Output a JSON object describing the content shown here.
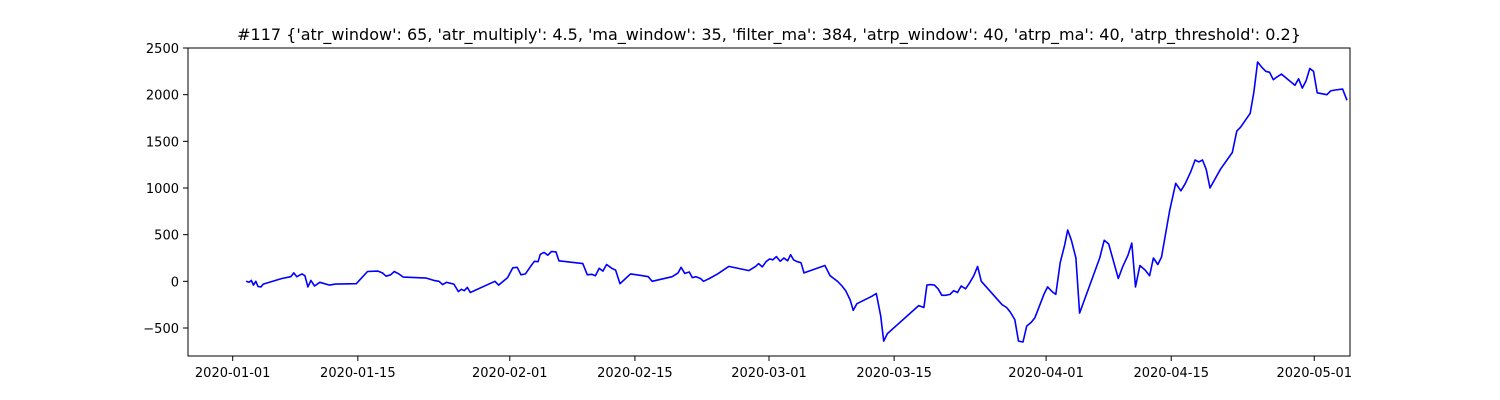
{
  "chart_data": {
    "type": "line",
    "title": "#117 {'atr_window': 65, 'atr_multiply': 4.5, 'ma_window': 35, 'filter_ma': 384, 'atrp_window': 40, 'atrp_ma': 40, 'atrp_threshold': 0.2}",
    "xlabel": "",
    "ylabel": "",
    "x_axis_kind": "date",
    "xlim": [
      "2019-12-27",
      "2020-05-05"
    ],
    "ylim": [
      -800,
      2500
    ],
    "grid": false,
    "legend": "none",
    "x_ticks": [
      {
        "date": "2020-01-01",
        "label": "2020-01-01"
      },
      {
        "date": "2020-01-15",
        "label": "2020-01-15"
      },
      {
        "date": "2020-02-01",
        "label": "2020-02-01"
      },
      {
        "date": "2020-02-15",
        "label": "2020-02-15"
      },
      {
        "date": "2020-03-01",
        "label": "2020-03-01"
      },
      {
        "date": "2020-03-15",
        "label": "2020-03-15"
      },
      {
        "date": "2020-04-01",
        "label": "2020-04-01"
      },
      {
        "date": "2020-04-15",
        "label": "2020-04-15"
      },
      {
        "date": "2020-05-01",
        "label": "2020-05-01"
      }
    ],
    "y_ticks": [
      {
        "value": -500,
        "label": "−500"
      },
      {
        "value": 0,
        "label": "0"
      },
      {
        "value": 500,
        "label": "500"
      },
      {
        "value": 1000,
        "label": "1000"
      },
      {
        "value": 1500,
        "label": "1500"
      },
      {
        "value": 2000,
        "label": "2000"
      },
      {
        "value": 2500,
        "label": "2500"
      }
    ],
    "series": [
      {
        "color": "#0000ff",
        "points": [
          [
            "2020-01-02 12:00",
            0
          ],
          [
            "2020-01-02 20:00",
            -10
          ],
          [
            "2020-01-03 02:00",
            10
          ],
          [
            "2020-01-03 08:00",
            -40
          ],
          [
            "2020-01-03 14:00",
            0
          ],
          [
            "2020-01-03 20:00",
            -55
          ],
          [
            "2020-01-04 04:00",
            -60
          ],
          [
            "2020-01-04 10:00",
            -30
          ],
          [
            "2020-01-06 12:00",
            30
          ],
          [
            "2020-01-07 12:00",
            50
          ],
          [
            "2020-01-07 20:00",
            90
          ],
          [
            "2020-01-08 04:00",
            50
          ],
          [
            "2020-01-08 18:00",
            80
          ],
          [
            "2020-01-09 02:00",
            60
          ],
          [
            "2020-01-09 10:00",
            -60
          ],
          [
            "2020-01-09 18:00",
            10
          ],
          [
            "2020-01-10 04:00",
            -50
          ],
          [
            "2020-01-10 18:00",
            -10
          ],
          [
            "2020-01-11 20:00",
            -40
          ],
          [
            "2020-01-12 12:00",
            -30
          ],
          [
            "2020-01-14 20:00",
            -25
          ],
          [
            "2020-01-16 02:00",
            105
          ],
          [
            "2020-01-17 06:00",
            110
          ],
          [
            "2020-01-17 18:00",
            90
          ],
          [
            "2020-01-18 04:00",
            55
          ],
          [
            "2020-01-18 16:00",
            70
          ],
          [
            "2020-01-19 02:00",
            105
          ],
          [
            "2020-01-19 14:00",
            80
          ],
          [
            "2020-01-20 02:00",
            45
          ],
          [
            "2020-01-22 16:00",
            35
          ],
          [
            "2020-01-23 12:00",
            10
          ],
          [
            "2020-01-24 02:00",
            0
          ],
          [
            "2020-01-24 12:00",
            -35
          ],
          [
            "2020-01-24 22:00",
            -10
          ],
          [
            "2020-01-25 18:00",
            -30
          ],
          [
            "2020-01-26 06:00",
            -110
          ],
          [
            "2020-01-26 14:00",
            -85
          ],
          [
            "2020-01-26 22:00",
            -100
          ],
          [
            "2020-01-27 06:00",
            -65
          ],
          [
            "2020-01-27 14:00",
            -120
          ],
          [
            "2020-01-30 08:00",
            0
          ],
          [
            "2020-01-30 18:00",
            -40
          ],
          [
            "2020-01-31 18:00",
            40
          ],
          [
            "2020-02-01 08:00",
            145
          ],
          [
            "2020-02-01 20:00",
            150
          ],
          [
            "2020-02-02 06:00",
            70
          ],
          [
            "2020-02-02 18:00",
            80
          ],
          [
            "2020-02-03 08:00",
            160
          ],
          [
            "2020-02-03 18:00",
            215
          ],
          [
            "2020-02-04 04:00",
            210
          ],
          [
            "2020-02-04 10:00",
            290
          ],
          [
            "2020-02-04 20:00",
            310
          ],
          [
            "2020-02-05 06:00",
            280
          ],
          [
            "2020-02-05 16:00",
            320
          ],
          [
            "2020-02-06 04:00",
            315
          ],
          [
            "2020-02-06 12:00",
            220
          ],
          [
            "2020-02-09 04:00",
            190
          ],
          [
            "2020-02-09 16:00",
            70
          ],
          [
            "2020-02-10 04:00",
            75
          ],
          [
            "2020-02-10 14:00",
            60
          ],
          [
            "2020-02-11 00:00",
            140
          ],
          [
            "2020-02-11 10:00",
            110
          ],
          [
            "2020-02-11 20:00",
            180
          ],
          [
            "2020-02-12 10:00",
            140
          ],
          [
            "2020-02-12 20:00",
            120
          ],
          [
            "2020-02-13 08:00",
            -25
          ],
          [
            "2020-02-13 20:00",
            20
          ],
          [
            "2020-02-14 12:00",
            80
          ],
          [
            "2020-02-15 20:00",
            60
          ],
          [
            "2020-02-16 12:00",
            50
          ],
          [
            "2020-02-16 22:00",
            0
          ],
          [
            "2020-02-19 04:00",
            50
          ],
          [
            "2020-02-19 20:00",
            90
          ],
          [
            "2020-02-20 04:00",
            150
          ],
          [
            "2020-02-20 14:00",
            85
          ],
          [
            "2020-02-21 02:00",
            100
          ],
          [
            "2020-02-21 10:00",
            40
          ],
          [
            "2020-02-21 20:00",
            50
          ],
          [
            "2020-02-22 08:00",
            30
          ],
          [
            "2020-02-22 16:00",
            0
          ],
          [
            "2020-02-23 08:00",
            30
          ],
          [
            "2020-02-24 06:00",
            80
          ],
          [
            "2020-02-25 12:00",
            160
          ],
          [
            "2020-02-27 18:00",
            115
          ],
          [
            "2020-02-28 12:00",
            160
          ],
          [
            "2020-02-28 20:00",
            190
          ],
          [
            "2020-02-29 06:00",
            155
          ],
          [
            "2020-02-29 16:00",
            210
          ],
          [
            "2020-03-01 02:00",
            240
          ],
          [
            "2020-03-01 10:00",
            230
          ],
          [
            "2020-03-01 20:00",
            265
          ],
          [
            "2020-03-02 06:00",
            215
          ],
          [
            "2020-03-02 16:00",
            250
          ],
          [
            "2020-03-03 02:00",
            220
          ],
          [
            "2020-03-03 10:00",
            285
          ],
          [
            "2020-03-03 18:00",
            230
          ],
          [
            "2020-03-04 04:00",
            210
          ],
          [
            "2020-03-04 14:00",
            200
          ],
          [
            "2020-03-04 22:00",
            90
          ],
          [
            "2020-03-07 06:00",
            170
          ],
          [
            "2020-03-07 20:00",
            60
          ],
          [
            "2020-03-08 06:00",
            30
          ],
          [
            "2020-03-08 16:00",
            0
          ],
          [
            "2020-03-09 04:00",
            -50
          ],
          [
            "2020-03-09 14:00",
            -100
          ],
          [
            "2020-03-10 02:00",
            -200
          ],
          [
            "2020-03-10 10:00",
            -310
          ],
          [
            "2020-03-10 20:00",
            -240
          ],
          [
            "2020-03-12 12:00",
            -160
          ],
          [
            "2020-03-13 00:00",
            -130
          ],
          [
            "2020-03-13 12:00",
            -370
          ],
          [
            "2020-03-13 20:00",
            -640
          ],
          [
            "2020-03-14 06:00",
            -560
          ],
          [
            "2020-03-17 18:00",
            -260
          ],
          [
            "2020-03-18 08:00",
            -280
          ],
          [
            "2020-03-18 16:00",
            -40
          ],
          [
            "2020-03-19 02:00",
            -35
          ],
          [
            "2020-03-19 12:00",
            -40
          ],
          [
            "2020-03-19 22:00",
            -80
          ],
          [
            "2020-03-20 08:00",
            -150
          ],
          [
            "2020-03-20 18:00",
            -150
          ],
          [
            "2020-03-21 06:00",
            -140
          ],
          [
            "2020-03-21 16:00",
            -100
          ],
          [
            "2020-03-22 02:00",
            -120
          ],
          [
            "2020-03-22 12:00",
            -50
          ],
          [
            "2020-03-23 00:00",
            -80
          ],
          [
            "2020-03-23 10:00",
            -20
          ],
          [
            "2020-03-23 22:00",
            60
          ],
          [
            "2020-03-24 08:00",
            160
          ],
          [
            "2020-03-24 18:00",
            0
          ],
          [
            "2020-03-27 02:00",
            -250
          ],
          [
            "2020-03-27 14:00",
            -280
          ],
          [
            "2020-03-28 00:00",
            -330
          ],
          [
            "2020-03-28 12:00",
            -410
          ],
          [
            "2020-03-28 22:00",
            -640
          ],
          [
            "2020-03-29 10:00",
            -650
          ],
          [
            "2020-03-29 20:00",
            -480
          ],
          [
            "2020-03-30 08:00",
            -440
          ],
          [
            "2020-03-30 18:00",
            -390
          ],
          [
            "2020-03-31 18:00",
            -140
          ],
          [
            "2020-04-01 04:00",
            -60
          ],
          [
            "2020-04-01 16:00",
            -110
          ],
          [
            "2020-04-02 02:00",
            -140
          ],
          [
            "2020-04-02 14:00",
            200
          ],
          [
            "2020-04-03 02:00",
            390
          ],
          [
            "2020-04-03 10:00",
            550
          ],
          [
            "2020-04-03 20:00",
            440
          ],
          [
            "2020-04-04 08:00",
            250
          ],
          [
            "2020-04-04 18:00",
            -340
          ],
          [
            "2020-04-07 00:00",
            250
          ],
          [
            "2020-04-07 12:00",
            440
          ],
          [
            "2020-04-08 00:00",
            400
          ],
          [
            "2020-04-08 14:00",
            200
          ],
          [
            "2020-04-09 02:00",
            30
          ],
          [
            "2020-04-09 14:00",
            160
          ],
          [
            "2020-04-10 04:00",
            280
          ],
          [
            "2020-04-10 14:00",
            410
          ],
          [
            "2020-04-11 00:00",
            -60
          ],
          [
            "2020-04-11 12:00",
            170
          ],
          [
            "2020-04-12 02:00",
            120
          ],
          [
            "2020-04-12 14:00",
            60
          ],
          [
            "2020-04-13 00:00",
            250
          ],
          [
            "2020-04-13 12:00",
            180
          ],
          [
            "2020-04-13 22:00",
            260
          ],
          [
            "2020-04-14 20:00",
            760
          ],
          [
            "2020-04-15 12:00",
            1050
          ],
          [
            "2020-04-16 02:00",
            970
          ],
          [
            "2020-04-16 14:00",
            1050
          ],
          [
            "2020-04-17 04:00",
            1170
          ],
          [
            "2020-04-17 16:00",
            1300
          ],
          [
            "2020-04-18 02:00",
            1280
          ],
          [
            "2020-04-18 12:00",
            1300
          ],
          [
            "2020-04-18 22:00",
            1200
          ],
          [
            "2020-04-19 08:00",
            1000
          ],
          [
            "2020-04-20 12:00",
            1200
          ],
          [
            "2020-04-21 20:00",
            1380
          ],
          [
            "2020-04-22 08:00",
            1610
          ],
          [
            "2020-04-22 18:00",
            1650
          ],
          [
            "2020-04-23 06:00",
            1720
          ],
          [
            "2020-04-23 20:00",
            1800
          ],
          [
            "2020-04-24 06:00",
            2030
          ],
          [
            "2020-04-24 16:00",
            2350
          ],
          [
            "2020-04-25 04:00",
            2290
          ],
          [
            "2020-04-25 14:00",
            2250
          ],
          [
            "2020-04-26 00:00",
            2240
          ],
          [
            "2020-04-26 10:00",
            2160
          ],
          [
            "2020-04-26 20:00",
            2190
          ],
          [
            "2020-04-27 08:00",
            2220
          ],
          [
            "2020-04-28 20:00",
            2100
          ],
          [
            "2020-04-29 06:00",
            2170
          ],
          [
            "2020-04-29 16:00",
            2070
          ],
          [
            "2020-04-30 02:00",
            2150
          ],
          [
            "2020-04-30 12:00",
            2280
          ],
          [
            "2020-04-30 22:00",
            2250
          ],
          [
            "2020-05-01 08:00",
            2020
          ],
          [
            "2020-05-02 10:00",
            2000
          ],
          [
            "2020-05-02 20:00",
            2040
          ],
          [
            "2020-05-03 08:00",
            2050
          ],
          [
            "2020-05-04 04:00",
            2060
          ],
          [
            "2020-05-04 16:00",
            1940
          ]
        ]
      }
    ]
  }
}
